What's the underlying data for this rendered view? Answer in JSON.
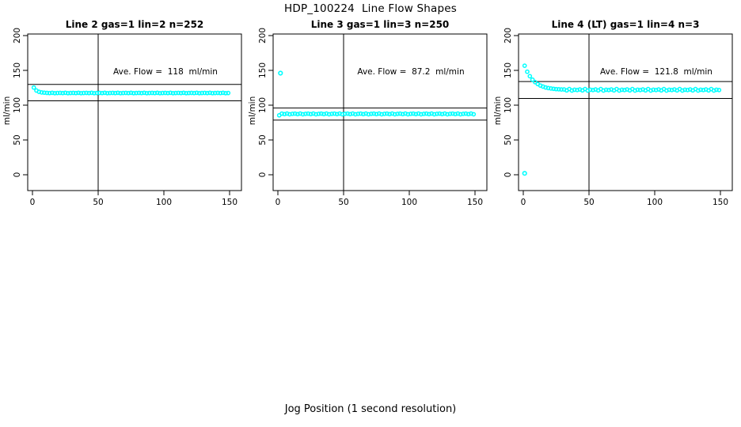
{
  "page": {
    "title": "HDP_100224  Line Flow Shapes",
    "bottom_xlabel": "Jog Position (1 second resolution)"
  },
  "style": {
    "point_color": "#00ffff",
    "axis_color": "#000000",
    "background": "#ffffff"
  },
  "axes": {
    "x_ticks": [
      0,
      50,
      100,
      150
    ],
    "y_ticks": [
      0,
      50,
      100,
      150,
      200
    ],
    "y_label": "ml/min",
    "vline_x": 50,
    "xlim": [
      0,
      150
    ],
    "ylim": [
      0,
      200
    ]
  },
  "chart_data": [
    {
      "type": "scatter",
      "title": "Line 2 gas=1 lin=2 n=252",
      "annotation": "Ave. Flow =  118  ml/min",
      "ave_flow": 118,
      "n": 252,
      "hline_upper": 129.8,
      "hline_lower": 106.2,
      "ylabel": "ml/min",
      "x": [
        1,
        3,
        5,
        7,
        9,
        11,
        13,
        15,
        17,
        19,
        21,
        23,
        25,
        27,
        29,
        31,
        33,
        35,
        37,
        39,
        41,
        43,
        45,
        47,
        49,
        51,
        53,
        55,
        57,
        59,
        61,
        63,
        65,
        67,
        69,
        71,
        73,
        75,
        77,
        79,
        81,
        83,
        85,
        87,
        89,
        91,
        93,
        95,
        97,
        99,
        101,
        103,
        105,
        107,
        109,
        111,
        113,
        115,
        117,
        119,
        121,
        123,
        125,
        127,
        129,
        131,
        133,
        135,
        137,
        139,
        141,
        143,
        145,
        147,
        149
      ],
      "y": [
        125.3,
        121.0,
        119.2,
        118.3,
        117.9,
        117.6,
        117.4,
        117.7,
        117.3,
        117.5,
        117.6,
        117.4,
        117.7,
        117.3,
        117.5,
        117.6,
        117.4,
        117.7,
        117.3,
        117.5,
        117.6,
        117.4,
        117.7,
        117.3,
        117.5,
        117.6,
        117.4,
        117.7,
        117.3,
        117.5,
        117.6,
        117.4,
        117.7,
        117.3,
        117.5,
        117.6,
        117.4,
        117.7,
        117.3,
        117.5,
        117.6,
        117.4,
        117.7,
        117.3,
        117.5,
        117.6,
        117.4,
        117.7,
        117.3,
        117.5,
        117.6,
        117.4,
        117.7,
        117.3,
        117.5,
        117.6,
        117.4,
        117.7,
        117.3,
        117.5,
        117.6,
        117.4,
        117.7,
        117.3,
        117.5,
        117.6,
        117.4,
        117.7,
        117.3,
        117.5,
        117.6,
        117.4,
        117.7,
        117.3,
        117.5
      ],
      "outliers": []
    },
    {
      "type": "scatter",
      "title": "Line 3 gas=1 lin=3 n=250",
      "annotation": "Ave. Flow =  87.2  ml/min",
      "ave_flow": 87.2,
      "n": 250,
      "hline_upper": 95.9,
      "hline_lower": 78.5,
      "ylabel": "ml/min",
      "x": [
        1,
        3,
        5,
        7,
        9,
        11,
        13,
        15,
        17,
        19,
        21,
        23,
        25,
        27,
        29,
        31,
        33,
        35,
        37,
        39,
        41,
        43,
        45,
        47,
        49,
        51,
        53,
        55,
        57,
        59,
        61,
        63,
        65,
        67,
        69,
        71,
        73,
        75,
        77,
        79,
        81,
        83,
        85,
        87,
        89,
        91,
        93,
        95,
        97,
        99,
        101,
        103,
        105,
        107,
        109,
        111,
        113,
        115,
        117,
        119,
        121,
        123,
        125,
        127,
        129,
        131,
        133,
        135,
        137,
        139,
        141,
        143,
        145,
        147,
        149
      ],
      "y": [
        85.5,
        87.8,
        87.2,
        88.0,
        86.9,
        87.5,
        87.8,
        87.2,
        88.0,
        86.9,
        87.5,
        87.8,
        87.2,
        88.0,
        86.9,
        87.5,
        87.8,
        87.2,
        88.0,
        86.9,
        87.5,
        87.8,
        87.2,
        88.0,
        86.9,
        87.5,
        87.8,
        87.2,
        88.0,
        86.9,
        87.5,
        87.8,
        87.2,
        88.0,
        86.9,
        87.5,
        87.8,
        87.2,
        88.0,
        86.9,
        87.5,
        87.8,
        87.2,
        88.0,
        86.9,
        87.5,
        87.8,
        87.2,
        88.0,
        86.9,
        87.5,
        87.8,
        87.2,
        88.0,
        86.9,
        87.5,
        87.8,
        87.2,
        88.0,
        86.9,
        87.5,
        87.8,
        87.2,
        88.0,
        86.9,
        87.5,
        87.8,
        87.2,
        88.0,
        86.9,
        87.5,
        87.8,
        87.2,
        88.0,
        86.9
      ],
      "outliers": [
        {
          "x": 2,
          "y": 146
        }
      ]
    },
    {
      "type": "scatter",
      "title": "Line 4 (LT) gas=1 lin=4 n=3",
      "annotation": "Ave. Flow =  121.8  ml/min",
      "ave_flow": 121.8,
      "n": 3,
      "hline_upper": 134.0,
      "hline_lower": 109.6,
      "ylabel": "ml/min",
      "x": [
        1,
        3,
        5,
        7,
        9,
        11,
        13,
        15,
        17,
        19,
        21,
        23,
        25,
        27,
        29,
        31,
        33,
        35,
        37,
        39,
        41,
        43,
        45,
        47,
        49,
        51,
        53,
        55,
        57,
        59,
        61,
        63,
        65,
        67,
        69,
        71,
        73,
        75,
        77,
        79,
        81,
        83,
        85,
        87,
        89,
        91,
        93,
        95,
        97,
        99,
        101,
        103,
        105,
        107,
        109,
        111,
        113,
        115,
        117,
        119,
        121,
        123,
        125,
        127,
        129,
        131,
        133,
        135,
        137,
        139,
        141,
        143,
        145,
        147,
        149
      ],
      "y": [
        156.7,
        148.1,
        141.6,
        136.7,
        133.1,
        130.3,
        128.2,
        126.7,
        125.5,
        124.6,
        124.0,
        123.5,
        123.1,
        122.8,
        122.6,
        122.6,
        121.2,
        123.2,
        121.0,
        122.2,
        121.7,
        122.6,
        121.2,
        123.2,
        121.0,
        122.2,
        121.7,
        122.6,
        121.2,
        123.2,
        121.0,
        122.2,
        121.7,
        122.6,
        121.2,
        123.2,
        121.0,
        122.2,
        121.7,
        122.6,
        121.2,
        123.2,
        121.0,
        122.2,
        121.7,
        122.6,
        121.2,
        123.2,
        121.0,
        122.2,
        121.7,
        122.6,
        121.2,
        123.2,
        121.0,
        122.2,
        121.7,
        122.6,
        121.2,
        123.2,
        121.0,
        122.2,
        121.7,
        122.6,
        121.2,
        123.2,
        121.0,
        122.2,
        121.7,
        122.6,
        121.2,
        123.2,
        121.0,
        122.2,
        121.7
      ],
      "outliers": [
        {
          "x": 1,
          "y": 2
        }
      ]
    }
  ]
}
